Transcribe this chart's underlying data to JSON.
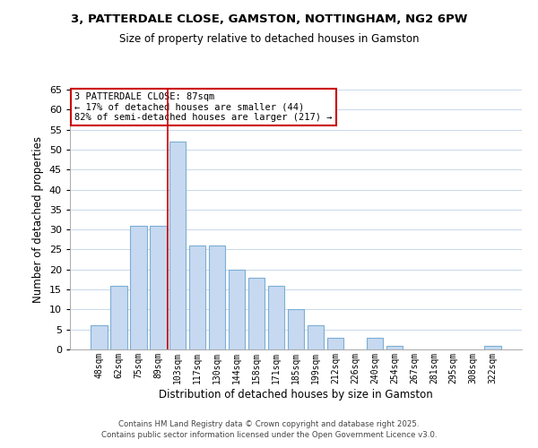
{
  "title": "3, PATTERDALE CLOSE, GAMSTON, NOTTINGHAM, NG2 6PW",
  "subtitle": "Size of property relative to detached houses in Gamston",
  "xlabel": "Distribution of detached houses by size in Gamston",
  "ylabel": "Number of detached properties",
  "bar_labels": [
    "48sqm",
    "62sqm",
    "75sqm",
    "89sqm",
    "103sqm",
    "117sqm",
    "130sqm",
    "144sqm",
    "158sqm",
    "171sqm",
    "185sqm",
    "199sqm",
    "212sqm",
    "226sqm",
    "240sqm",
    "254sqm",
    "267sqm",
    "281sqm",
    "295sqm",
    "308sqm",
    "322sqm"
  ],
  "bar_values": [
    6,
    16,
    31,
    31,
    52,
    26,
    26,
    20,
    18,
    16,
    10,
    6,
    3,
    0,
    3,
    1,
    0,
    0,
    0,
    0,
    1
  ],
  "bar_color": "#c6d9f1",
  "bar_edge_color": "#7bafd4",
  "ylim": [
    0,
    65
  ],
  "yticks": [
    0,
    5,
    10,
    15,
    20,
    25,
    30,
    35,
    40,
    45,
    50,
    55,
    60,
    65
  ],
  "redline_x": 3.5,
  "annotation_title": "3 PATTERDALE CLOSE: 87sqm",
  "annotation_line1": "← 17% of detached houses are smaller (44)",
  "annotation_line2": "82% of semi-detached houses are larger (217) →",
  "annotation_box_color": "#ffffff",
  "annotation_box_edge": "#cc0000",
  "footer1": "Contains HM Land Registry data © Crown copyright and database right 2025.",
  "footer2": "Contains public sector information licensed under the Open Government Licence v3.0.",
  "background_color": "#ffffff",
  "grid_color": "#c8d8ec"
}
